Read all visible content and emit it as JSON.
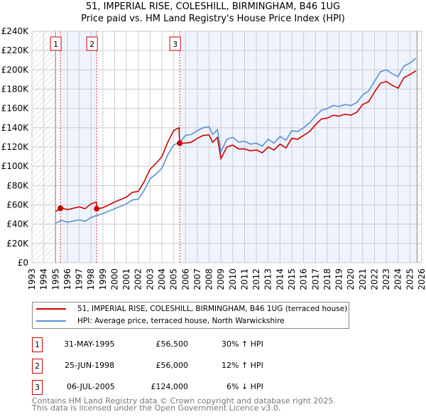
{
  "chart_data": {
    "type": "line",
    "title": "51, IMPERIAL RISE, COLESHILL, BIRMINGHAM, B46 1UG",
    "subtitle": "Price paid vs. HM Land Registry's House Price Index (HPI)",
    "xlim": [
      1993,
      2026
    ],
    "ylim": [
      0,
      240000
    ],
    "x_ticks": [
      "1993",
      "1994",
      "1995",
      "1996",
      "1997",
      "1998",
      "1999",
      "2000",
      "2001",
      "2002",
      "2003",
      "2004",
      "2005",
      "2006",
      "2007",
      "2008",
      "2009",
      "2010",
      "2011",
      "2012",
      "2013",
      "2014",
      "2015",
      "2016",
      "2017",
      "2018",
      "2019",
      "2020",
      "2021",
      "2022",
      "2023",
      "2024",
      "2025",
      "2026"
    ],
    "y_ticks": [
      {
        "v": 0,
        "label": "£0"
      },
      {
        "v": 20000,
        "label": "£20K"
      },
      {
        "v": 40000,
        "label": "£40K"
      },
      {
        "v": 60000,
        "label": "£60K"
      },
      {
        "v": 80000,
        "label": "£80K"
      },
      {
        "v": 100000,
        "label": "£100K"
      },
      {
        "v": 120000,
        "label": "£120K"
      },
      {
        "v": 140000,
        "label": "£140K"
      },
      {
        "v": 160000,
        "label": "£160K"
      },
      {
        "v": 180000,
        "label": "£180K"
      },
      {
        "v": 200000,
        "label": "£200K"
      },
      {
        "v": 220000,
        "label": "£220K"
      },
      {
        "v": 240000,
        "label": "£240K"
      }
    ],
    "grid": true,
    "data_range": [
      1995.0,
      2025.6
    ],
    "series": [
      {
        "name": "51, IMPERIAL RISE, COLESHILL, BIRMINGHAM, B46 1UG (terraced house)",
        "color": "#cc0000",
        "x": [
          1995,
          1995.41,
          1995.5,
          1996,
          1997,
          1997.5,
          1998,
          1998.45,
          1998.48,
          1999,
          2000,
          2001,
          2001.5,
          2002,
          2002.5,
          2003,
          2003.5,
          2004,
          2004.5,
          2005,
          2005.45,
          2005.51,
          2006,
          2006.5,
          2007,
          2007.5,
          2008,
          2008.3,
          2008.7,
          2009,
          2009.5,
          2010,
          2010.5,
          2011,
          2011.5,
          2012,
          2012.5,
          2013,
          2013.5,
          2014,
          2014.5,
          2015,
          2015.5,
          2016,
          2016.5,
          2017,
          2017.5,
          2018,
          2018.5,
          2019,
          2019.5,
          2020,
          2020.5,
          2021,
          2021.5,
          2022,
          2022.5,
          2023,
          2023.5,
          2024,
          2024.5,
          2025,
          2025.5
        ],
        "y": [
          53,
          56.5,
          57,
          55,
          58,
          56,
          61,
          63,
          56,
          57,
          63,
          68,
          73,
          74,
          84,
          97,
          103,
          110,
          125,
          137,
          140,
          124,
          124,
          125,
          129,
          132,
          132.5,
          125,
          130,
          108,
          120,
          122,
          118,
          118,
          116,
          117,
          114,
          120,
          117,
          123,
          119,
          129,
          128,
          132,
          136,
          143,
          149,
          150,
          153,
          152,
          154,
          153,
          156,
          164,
          167,
          177,
          186,
          188,
          184,
          181,
          192,
          195,
          199
        ]
      },
      {
        "name": "HPI: Average price, terraced house, North Warwickshire",
        "color": "#5b8fd4",
        "x": [
          1995,
          1995.5,
          1996,
          1997,
          1997.5,
          1998,
          1998.5,
          1999,
          2000,
          2001,
          2001.5,
          2002,
          2002.5,
          2003,
          2003.5,
          2004,
          2004.5,
          2005,
          2005.5,
          2006,
          2006.5,
          2007,
          2007.5,
          2008,
          2008.3,
          2008.7,
          2009,
          2009.5,
          2010,
          2010.5,
          2011,
          2011.5,
          2012,
          2012.5,
          2013,
          2013.5,
          2014,
          2014.5,
          2015,
          2015.5,
          2016,
          2016.5,
          2017,
          2017.5,
          2018,
          2018.5,
          2019,
          2019.5,
          2020,
          2020.5,
          2021,
          2021.5,
          2022,
          2022.5,
          2023,
          2023.5,
          2024,
          2024.5,
          2025,
          2025.5
        ],
        "y": [
          41,
          44,
          42,
          44.5,
          43,
          47,
          49,
          51,
          56,
          61,
          65,
          66,
          75,
          87,
          92,
          98,
          112,
          122,
          125,
          132,
          133,
          137,
          140,
          141,
          133,
          138,
          115,
          128,
          130,
          125,
          126,
          123,
          124,
          121,
          128,
          124,
          131,
          127,
          137,
          136,
          140,
          145,
          152,
          158,
          160,
          163,
          162,
          164,
          163,
          166,
          174,
          178,
          188,
          198,
          200,
          196,
          193,
          204,
          207,
          212
        ]
      }
    ],
    "y_units": "thousands GBP",
    "sales": [
      {
        "n": "1",
        "x": 1995.41,
        "date": "31-MAY-1995",
        "price": "£56,500",
        "value": 56.5,
        "hpi": "30% ↑ HPI"
      },
      {
        "n": "2",
        "x": 1998.48,
        "date": "25-JUN-1998",
        "price": "£56,000",
        "value": 56,
        "hpi": "12% ↑ HPI"
      },
      {
        "n": "3",
        "x": 2005.51,
        "date": "06-JUL-2005",
        "price": "£124,000",
        "value": 124,
        "hpi": "6% ↓ HPI"
      }
    ],
    "legend_position": "below"
  },
  "footer": {
    "line1": "Contains HM Land Registry data © Crown copyright and database right 2025.",
    "line2": "This data is licensed under the Open Government Licence v3.0."
  }
}
